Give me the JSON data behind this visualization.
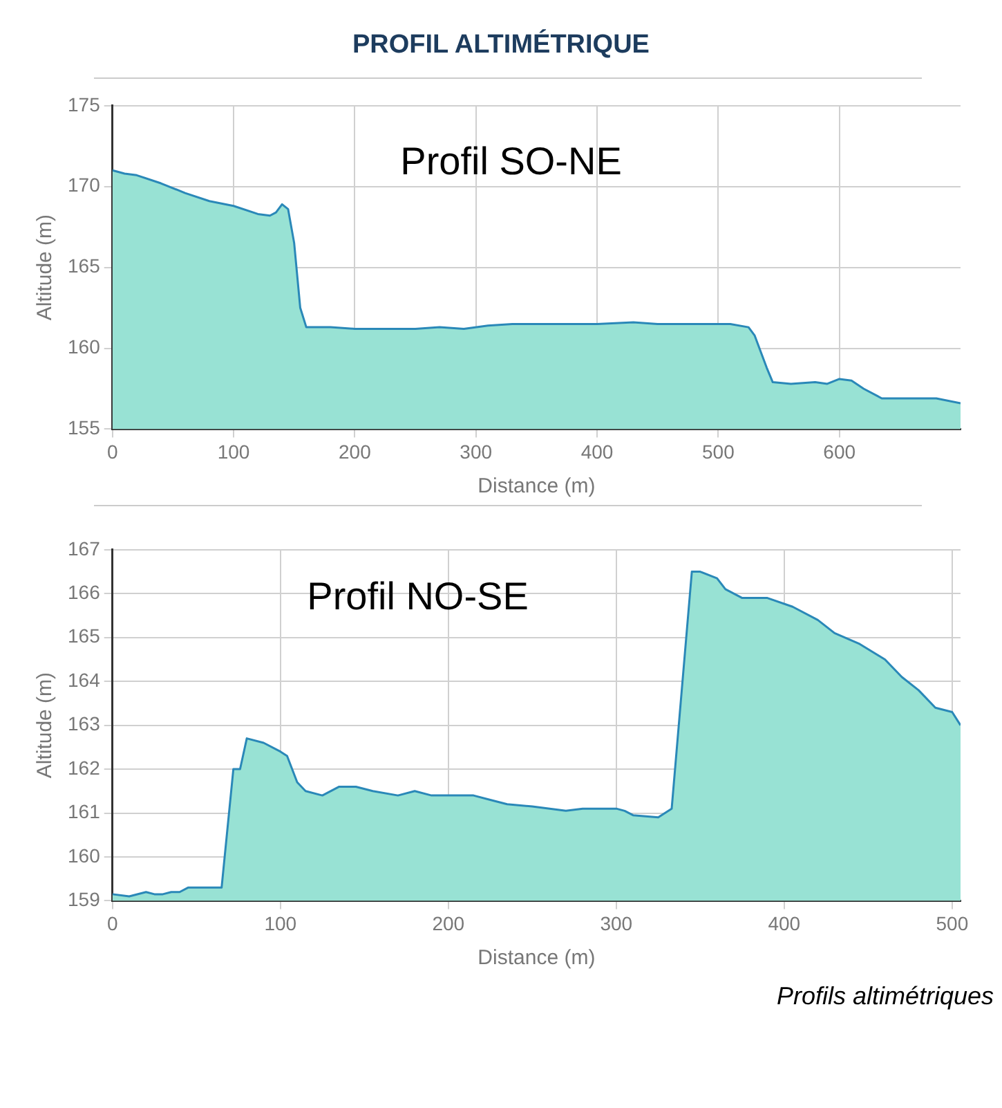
{
  "chart_data": [
    {
      "type": "area",
      "title": "PROFIL ALTIMÉTRIQUE",
      "xlabel": "Distance (m)",
      "ylabel": "Altitude (m)",
      "annotations": [
        "Profil SO-NE"
      ],
      "grid": true,
      "legend": false,
      "marker": "none",
      "xlim": [
        0,
        700
      ],
      "xticks": [
        0,
        100,
        200,
        300,
        400,
        500,
        600
      ],
      "ylim": [
        155,
        175
      ],
      "yticks": [
        155,
        160,
        165,
        170,
        175
      ],
      "x": [
        0,
        10,
        20,
        40,
        60,
        80,
        100,
        120,
        130,
        135,
        140,
        145,
        150,
        155,
        160,
        180,
        200,
        250,
        270,
        290,
        310,
        330,
        400,
        430,
        450,
        510,
        525,
        530,
        540,
        545,
        560,
        580,
        590,
        600,
        610,
        620,
        635,
        680,
        700
      ],
      "series": [
        {
          "color": "#98e2d4",
          "values": [
            171,
            170.8,
            170.7,
            170.2,
            169.6,
            169.1,
            168.8,
            168.3,
            168.2,
            168.4,
            168.9,
            168.6,
            166.5,
            162.5,
            161.3,
            161.3,
            161.2,
            161.2,
            161.3,
            161.2,
            161.4,
            161.5,
            161.5,
            161.6,
            161.5,
            161.5,
            161.3,
            160.8,
            158.8,
            157.9,
            157.8,
            157.9,
            157.8,
            158.1,
            158,
            157.5,
            156.9,
            156.9,
            156.6
          ]
        }
      ]
    },
    {
      "type": "area",
      "xlabel": "Distance (m)",
      "ylabel": "Altitude (m)",
      "annotations": [
        "Profil NO-SE",
        "Profils altimétriques"
      ],
      "grid": true,
      "legend": false,
      "marker": "none",
      "xlim": [
        0,
        505
      ],
      "xticks": [
        0,
        100,
        200,
        300,
        400,
        500
      ],
      "ylim": [
        159,
        167
      ],
      "yticks": [
        159,
        160,
        161,
        162,
        163,
        164,
        165,
        166,
        167
      ],
      "x": [
        0,
        10,
        20,
        25,
        30,
        35,
        40,
        45,
        55,
        65,
        72,
        76,
        80,
        90,
        100,
        104,
        110,
        115,
        125,
        135,
        145,
        155,
        170,
        180,
        190,
        215,
        225,
        235,
        250,
        270,
        280,
        300,
        305,
        310,
        325,
        333,
        345,
        350,
        360,
        365,
        375,
        390,
        405,
        420,
        430,
        445,
        460,
        470,
        480,
        490,
        500,
        505
      ],
      "series": [
        {
          "color": "#98e2d4",
          "values": [
            159.15,
            159.1,
            159.2,
            159.15,
            159.15,
            159.2,
            159.2,
            159.3,
            159.3,
            159.3,
            162,
            162,
            162.7,
            162.6,
            162.4,
            162.3,
            161.7,
            161.5,
            161.4,
            161.6,
            161.6,
            161.5,
            161.4,
            161.5,
            161.4,
            161.4,
            161.3,
            161.2,
            161.15,
            161.05,
            161.1,
            161.1,
            161.05,
            160.95,
            160.9,
            161.1,
            166.5,
            166.5,
            166.35,
            166.1,
            165.9,
            165.9,
            165.7,
            165.4,
            165.1,
            164.85,
            164.5,
            164.1,
            163.8,
            163.4,
            163.3,
            163
          ]
        }
      ]
    }
  ]
}
